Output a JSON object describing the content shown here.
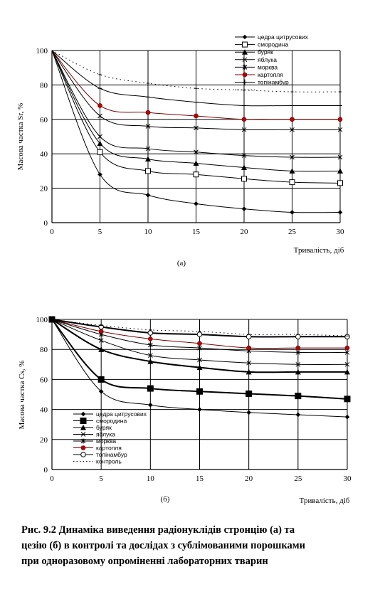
{
  "chart_data": [
    {
      "type": "line",
      "panel_label": "(а)",
      "xlabel": "Тривалість, діб",
      "ylabel": "Масова частка Sr, %",
      "xlim": [
        0,
        30
      ],
      "ylim": [
        0,
        100
      ],
      "x_ticks": [
        "0",
        "5",
        "10",
        "15",
        "20",
        "25",
        "30"
      ],
      "y_ticks": [
        "0",
        "20",
        "40",
        "60",
        "80",
        "100"
      ],
      "x": [
        0,
        5,
        10,
        15,
        20,
        25,
        30
      ],
      "legend_position": "top-right",
      "series": [
        {
          "name": "цедра цитрусових",
          "marker": "diamond",
          "values": [
            100,
            28,
            16,
            11,
            8,
            6,
            6
          ]
        },
        {
          "name": "смородина",
          "marker": "square-open",
          "values": [
            100,
            41,
            30,
            28,
            25.5,
            23.5,
            23
          ]
        },
        {
          "name": "буряк",
          "marker": "triangle",
          "values": [
            100,
            46,
            37,
            34.5,
            32,
            30,
            30
          ]
        },
        {
          "name": "яблука",
          "marker": "x",
          "values": [
            100,
            50,
            43,
            41,
            39,
            38,
            38
          ]
        },
        {
          "name": "морква",
          "marker": "star",
          "values": [
            100,
            62,
            56,
            55,
            54,
            54,
            54
          ]
        },
        {
          "name": "картопля",
          "marker": "dot-red",
          "values": [
            100,
            68,
            64,
            62,
            60,
            60,
            60
          ]
        },
        {
          "name": "топінамбур",
          "marker": "plus",
          "values": [
            100,
            78,
            73,
            70,
            68,
            68,
            68
          ]
        },
        {
          "name": "",
          "marker": "dotted",
          "values": [
            100,
            86,
            81,
            78,
            77,
            76,
            76
          ]
        }
      ]
    },
    {
      "type": "line",
      "panel_label": "(б)",
      "xlabel": "Тривалість, діб",
      "ylabel": "Масова частка Cs, %",
      "xlim": [
        0,
        30
      ],
      "ylim": [
        0,
        100
      ],
      "x_ticks": [
        "0",
        "5",
        "10",
        "15",
        "20",
        "25",
        "30"
      ],
      "y_ticks": [
        "0",
        "20",
        "40",
        "60",
        "80",
        "100"
      ],
      "x": [
        0,
        5,
        10,
        15,
        20,
        25,
        30
      ],
      "legend_position": "bottom-left",
      "series": [
        {
          "name": "цедра цитрусових",
          "marker": "diamond",
          "values": [
            100,
            52,
            43,
            40,
            38,
            36.5,
            35
          ]
        },
        {
          "name": "смородина",
          "marker": "square",
          "values": [
            100,
            60,
            54,
            52,
            50.5,
            49,
            47
          ]
        },
        {
          "name": "буряк",
          "marker": "triangle",
          "values": [
            100,
            80,
            72,
            68,
            65,
            65,
            65
          ]
        },
        {
          "name": "яблука",
          "marker": "x",
          "values": [
            100,
            86,
            76,
            73,
            71,
            70,
            70
          ]
        },
        {
          "name": "морква",
          "marker": "star",
          "values": [
            100,
            90,
            83,
            81,
            79,
            78,
            78
          ]
        },
        {
          "name": "картопля",
          "marker": "dot-red",
          "values": [
            100,
            92,
            87,
            84,
            81,
            81,
            81
          ]
        },
        {
          "name": "топінамбур",
          "marker": "circle-open",
          "values": [
            100,
            95,
            91,
            90,
            88.5,
            88.5,
            88.5
          ]
        },
        {
          "name": "контроль",
          "marker": "dotted",
          "values": [
            100,
            96,
            93,
            92,
            90,
            90,
            89
          ]
        }
      ]
    }
  ],
  "caption": {
    "lines": [
      "Рис. 9.2 Динаміка виведення радіонуклідів стронцію (а) та",
      "цезію (б) в контролі та дослідах з сублімованими порошками",
      "при одноразовому опроміненні лабораторних тварин"
    ]
  }
}
